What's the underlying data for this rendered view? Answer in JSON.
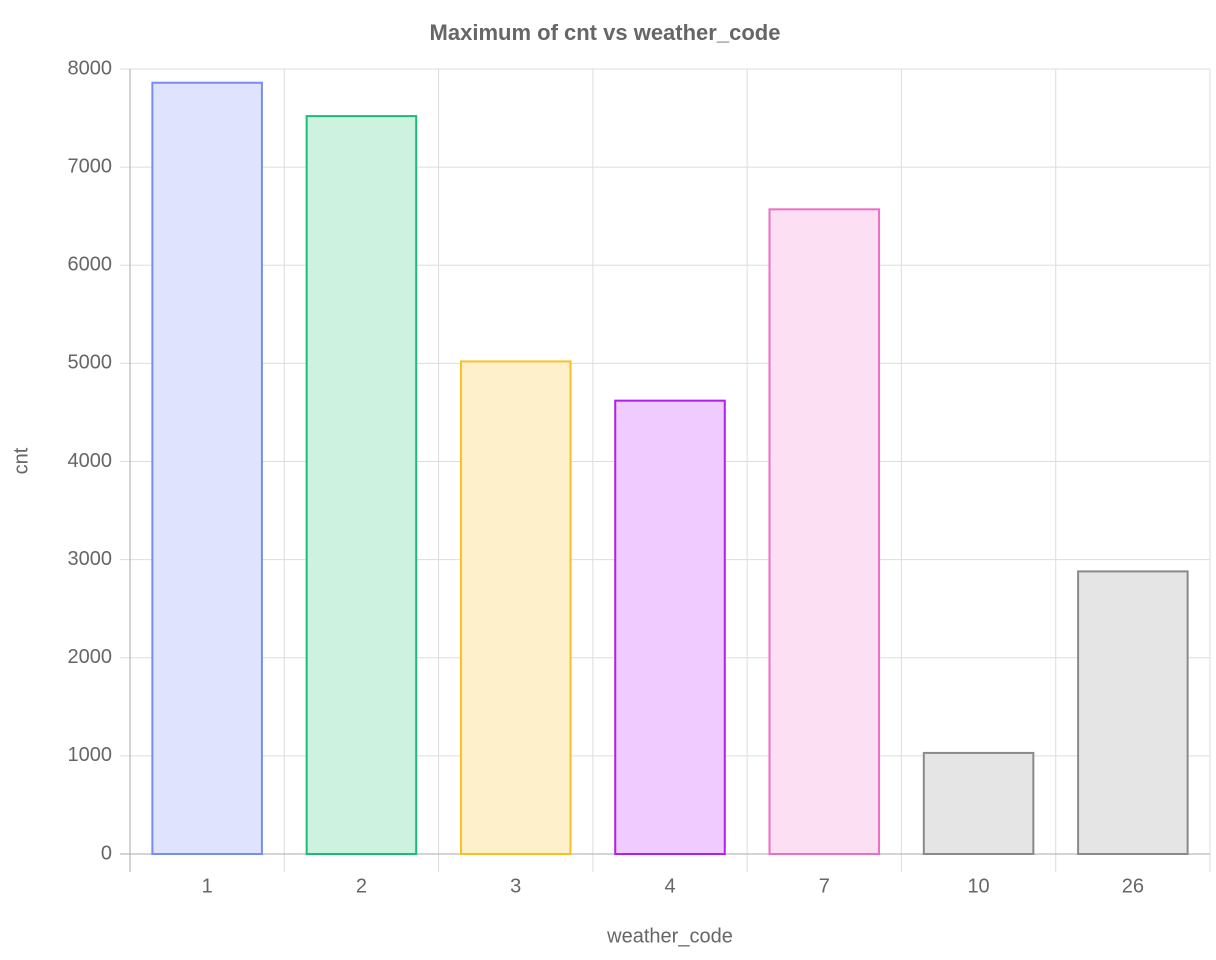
{
  "chart_data": {
    "type": "bar",
    "title": "Maximum of cnt vs weather_code",
    "x_label": "weather_code",
    "y_label": "cnt",
    "categories": [
      "1",
      "2",
      "3",
      "4",
      "7",
      "10",
      "26"
    ],
    "values": [
      7860,
      7520,
      5020,
      4620,
      6570,
      1030,
      2880
    ],
    "colors": [
      "#dfe3fe",
      "#cdf3e0",
      "#fff0cc",
      "#efcbff",
      "#fddff3",
      "#e5e5e5",
      "#e5e5e5"
    ],
    "border_colors": [
      "#7a8cf0",
      "#1dbb78",
      "#fbbf24",
      "#b020e8",
      "#ec6fc6",
      "#8a8a8a",
      "#8a8a8a"
    ],
    "ylim": [
      0,
      8000
    ],
    "yticks": [
      0,
      1000,
      2000,
      3000,
      4000,
      5000,
      6000,
      7000,
      8000
    ],
    "grid": true
  }
}
